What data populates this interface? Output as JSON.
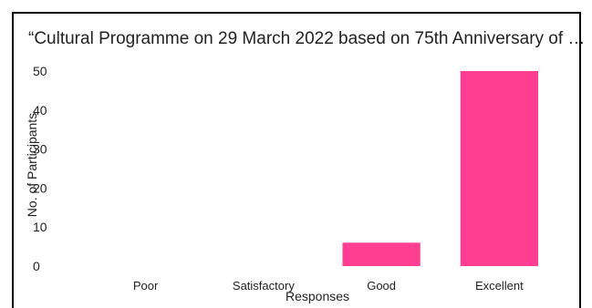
{
  "chart_data": {
    "type": "bar",
    "title": "“Cultural Programme on 29 March 2022 based on 75th Anniversary of  …",
    "xlabel": "Responses",
    "ylabel": "No. of Participants",
    "categories": [
      "Poor",
      "Satisfactory",
      "Good",
      "Excellent"
    ],
    "values": [
      0,
      0,
      6,
      50
    ],
    "ylim": [
      0,
      50
    ],
    "yticks": [
      "0",
      "10",
      "20",
      "30",
      "40",
      "50"
    ],
    "bar_color": "#ff3d91",
    "grid": false,
    "legend": "none"
  }
}
